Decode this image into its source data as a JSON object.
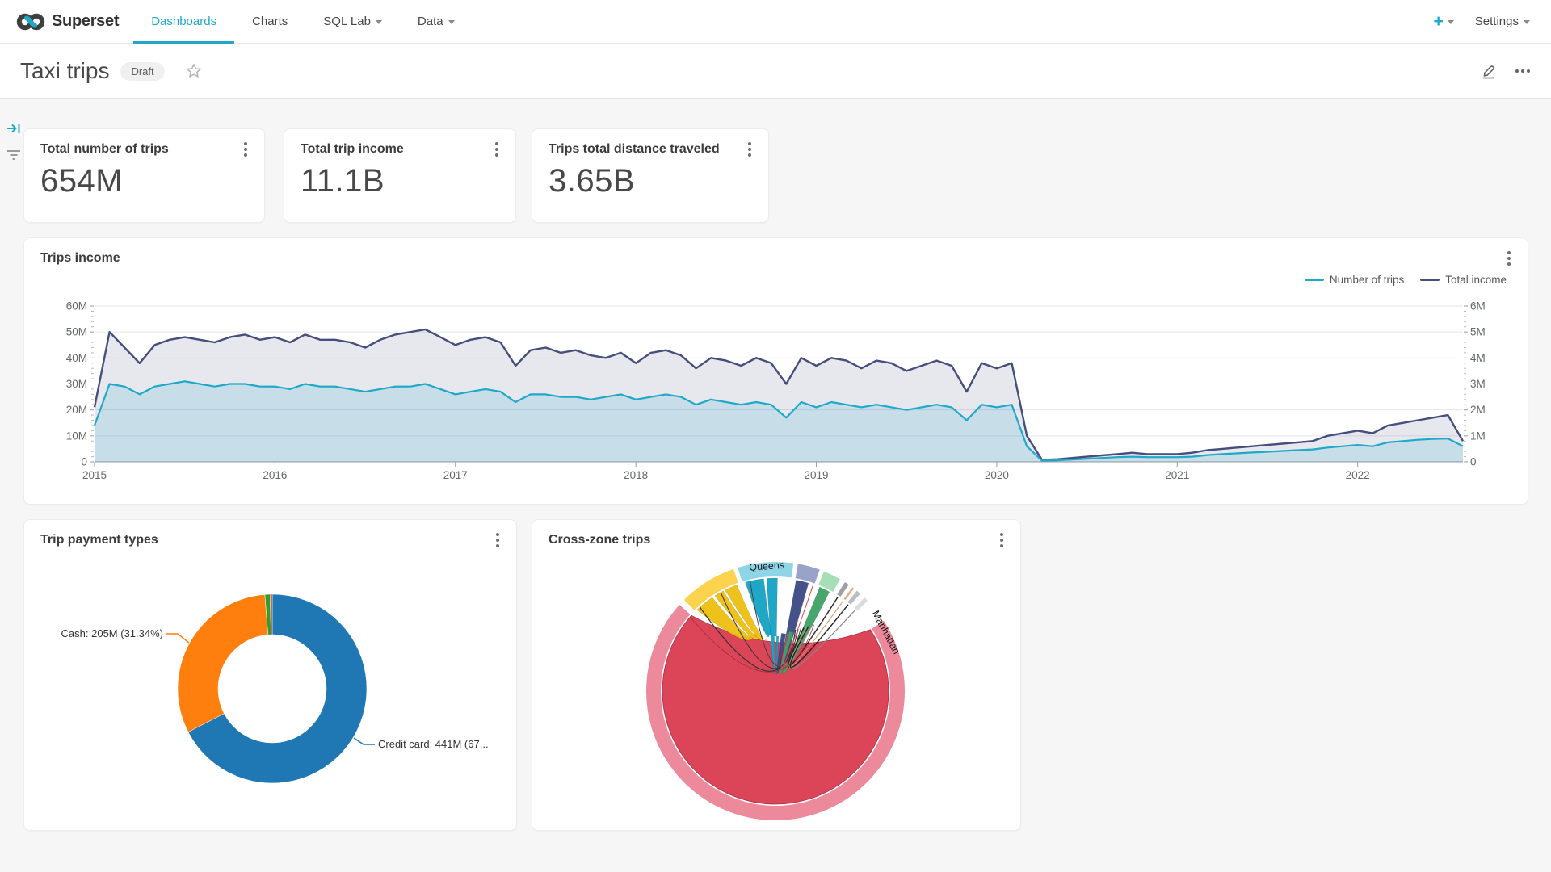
{
  "brand": {
    "name": "Superset",
    "logo_icon": "superset-infinity-logo"
  },
  "nav": {
    "items": [
      {
        "label": "Dashboards",
        "active": true,
        "caret": false
      },
      {
        "label": "Charts",
        "active": false,
        "caret": false
      },
      {
        "label": "SQL Lab",
        "active": false,
        "caret": true
      },
      {
        "label": "Data",
        "active": false,
        "caret": true
      }
    ],
    "plus_label": "+",
    "settings_label": "Settings"
  },
  "header": {
    "title": "Taxi trips",
    "status_badge": "Draft"
  },
  "kpis": [
    {
      "title": "Total number of trips",
      "value": "654M"
    },
    {
      "title": "Total trip income",
      "value": "11.1B"
    },
    {
      "title": "Trips total distance traveled",
      "value": "3.65B"
    }
  ],
  "colors": {
    "accent": "#1FA8C9",
    "trips_line": "#1FA8C9",
    "income_line": "#454E7C",
    "trips_fill": "rgba(31,168,201,0.16)",
    "income_fill": "rgba(69,78,124,0.13)",
    "grid": "#e3e6ee",
    "axis": "#9a9a9a",
    "tick_text": "#65676b"
  },
  "trips_income": {
    "title": "Trips income",
    "chart_data": {
      "type": "line",
      "x_start": "2015-01",
      "x_interval": "month",
      "x_ticks": [
        "2015",
        "2016",
        "2017",
        "2018",
        "2019",
        "2020",
        "2021",
        "2022"
      ],
      "left_axis_ticks": [
        "0",
        "10M",
        "20M",
        "30M",
        "40M",
        "50M",
        "60M"
      ],
      "right_axis_ticks": [
        "0",
        "1M",
        "2M",
        "3M",
        "4M",
        "5M",
        "6M"
      ],
      "left_ylim": [
        0,
        60
      ],
      "right_ylim": [
        0,
        6
      ],
      "grid": true,
      "legend_position": "top-right",
      "series": [
        {
          "name": "Number of trips",
          "axis": "right",
          "unit": "M",
          "values": [
            1.4,
            3.0,
            2.9,
            2.6,
            2.9,
            3.0,
            3.1,
            3.0,
            2.9,
            3.0,
            3.0,
            2.9,
            2.9,
            2.8,
            3.0,
            2.9,
            2.9,
            2.8,
            2.7,
            2.8,
            2.9,
            2.9,
            3.0,
            2.8,
            2.6,
            2.7,
            2.8,
            2.7,
            2.3,
            2.6,
            2.6,
            2.5,
            2.5,
            2.4,
            2.5,
            2.6,
            2.4,
            2.5,
            2.6,
            2.5,
            2.2,
            2.4,
            2.3,
            2.2,
            2.3,
            2.2,
            1.7,
            2.3,
            2.1,
            2.3,
            2.2,
            2.1,
            2.2,
            2.1,
            2.0,
            2.1,
            2.2,
            2.1,
            1.6,
            2.2,
            2.1,
            2.2,
            0.6,
            0.05,
            0.06,
            0.09,
            0.12,
            0.15,
            0.18,
            0.2,
            0.18,
            0.18,
            0.18,
            0.2,
            0.26,
            0.3,
            0.33,
            0.36,
            0.39,
            0.42,
            0.45,
            0.48,
            0.55,
            0.6,
            0.65,
            0.6,
            0.75,
            0.8,
            0.85,
            0.88,
            0.9,
            0.6
          ]
        },
        {
          "name": "Total income",
          "axis": "left",
          "unit": "M",
          "values": [
            21,
            50,
            44,
            38,
            45,
            47,
            48,
            47,
            46,
            48,
            49,
            47,
            48,
            46,
            49,
            47,
            47,
            46,
            44,
            47,
            49,
            50,
            51,
            48,
            45,
            47,
            48,
            46,
            37,
            43,
            44,
            42,
            43,
            41,
            40,
            42,
            38,
            42,
            43,
            41,
            36,
            40,
            39,
            37,
            40,
            38,
            30,
            40,
            37,
            40,
            39,
            36,
            39,
            38,
            35,
            37,
            39,
            37,
            27,
            38,
            36,
            38,
            10,
            0.8,
            1,
            1.5,
            2,
            2.5,
            3,
            3.5,
            3,
            3,
            3,
            3.5,
            4.5,
            5,
            5.5,
            6,
            6.5,
            7,
            7.5,
            8,
            10,
            11,
            12,
            11,
            14,
            15,
            16,
            17,
            18,
            8
          ]
        }
      ]
    }
  },
  "payment": {
    "title": "Trip payment types",
    "labels": {
      "cash": "Cash: 205M (31.34%)",
      "credit": "Credit card: 441M (67..."
    },
    "chart_data": {
      "type": "pie",
      "subtype": "donut",
      "slices": [
        {
          "label": "Credit card",
          "value": "441M",
          "pct": 67.42,
          "color": "#1f77b4"
        },
        {
          "label": "Cash",
          "value": "205M",
          "pct": 31.34,
          "color": "#ff7f0e"
        },
        {
          "label": "",
          "value": "",
          "pct": 0.88,
          "color": "#2ca02c"
        },
        {
          "label": "",
          "value": "",
          "pct": 0.36,
          "color": "#d62728"
        }
      ],
      "start_angle_deg": 0,
      "direction": "clockwise"
    }
  },
  "crosszone": {
    "title": "Cross-zone trips",
    "chart_data": {
      "type": "chord",
      "labeled_nodes": [
        "Queens",
        "Manhattan"
      ],
      "ring": [
        {
          "a0": 57,
          "a1": 312,
          "color": "#EC8A9C",
          "label": "Manhattan",
          "labelAngle": 62
        },
        {
          "a0": 315,
          "a1": 341,
          "color": "#FBD34E",
          "label": ""
        },
        {
          "a0": 343,
          "a1": 368,
          "color": "#8FD5E8",
          "label": "Queens",
          "labelAngle": 356
        },
        {
          "a0": 370,
          "a1": 380,
          "color": "#99A2C9",
          "label": ""
        },
        {
          "a0": 382,
          "a1": 390,
          "color": "#A6DEB5",
          "label": ""
        },
        {
          "a0": 392.5,
          "a1": 394.5,
          "color": "#9aa0a6",
          "label": ""
        },
        {
          "a0": 396.5,
          "a1": 397.4,
          "color": "#e8a87c",
          "label": ""
        },
        {
          "a0": 399,
          "a1": 401,
          "color": "#b9bec4",
          "label": ""
        },
        {
          "a0": 403.5,
          "a1": 405.5,
          "color": "#d9dcdf",
          "label": ""
        }
      ],
      "self_chord": {
        "a0": 57,
        "a1": 312,
        "color": "#DC4458",
        "stroke": "#A63245"
      },
      "ribbons": [
        {
          "arc": [
            316,
            326
          ],
          "tip": [
            341,
            75
          ],
          "color": "#EDBE12"
        },
        {
          "arc": [
            327.5,
            332.5
          ],
          "tip": [
            345,
            70
          ],
          "color": "#EDBE12"
        },
        {
          "arc": [
            333.5,
            340
          ],
          "tip": [
            349,
            66
          ],
          "color": "#EDBE12"
        },
        {
          "arc": [
            344.5,
            354
          ],
          "tip": [
            356,
            70
          ],
          "color": "#17A3C6"
        },
        {
          "arc": [
            355.5,
            361
          ],
          "tip": [
            1,
            68
          ],
          "color": "#17A3C6"
        },
        {
          "arc": [
            370.5,
            377
          ],
          "tip": [
            8,
            72
          ],
          "color": "#3D4B85"
        },
        {
          "arc": [
            383,
            388.5
          ],
          "tip": [
            15,
            76
          ],
          "color": "#41A266"
        }
      ],
      "threads": [
        {
          "from": 318,
          "tip": [
            18,
            80
          ],
          "color": "#333333",
          "w": 1.2
        },
        {
          "from": 331,
          "tip": [
            20,
            82
          ],
          "color": "#333333",
          "w": 1
        },
        {
          "from": 347,
          "tip": [
            22,
            84
          ],
          "color": "#444444",
          "w": 1
        },
        {
          "from": 379.5,
          "tip": [
            12,
            74
          ],
          "color": "#E04355",
          "w": 1
        },
        {
          "from": 393.5,
          "tip": [
            24,
            86
          ],
          "color": "#222222",
          "w": 1.4
        },
        {
          "from": 396.8,
          "tip": [
            26,
            88
          ],
          "color": "#cc9966",
          "w": 1
        },
        {
          "from": 400,
          "tip": [
            27,
            90
          ],
          "color": "#222222",
          "w": 1.4
        },
        {
          "from": 404.5,
          "tip": [
            29,
            92
          ],
          "color": "#888888",
          "w": 1.2
        },
        {
          "from": 311,
          "tip": [
            30,
            95
          ],
          "color": "#a03040",
          "w": 0.8
        }
      ]
    }
  },
  "icons": {
    "rail": [
      "expand-filter-bar-icon",
      "filter-icon"
    ],
    "title_actions": [
      "edit-icon",
      "more-horizontal-icon"
    ],
    "card_menu": "more-vertical-icon"
  }
}
